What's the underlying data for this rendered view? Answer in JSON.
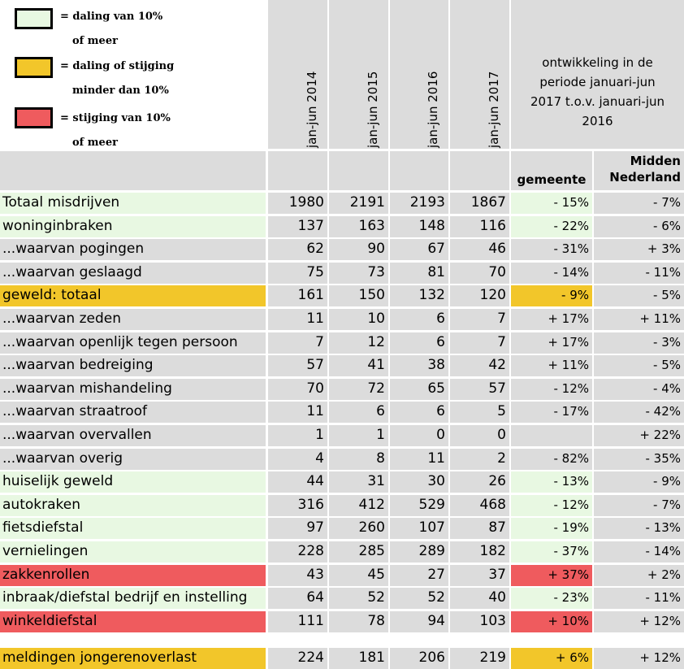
{
  "legend": [
    {
      "line1": "= daling van 10%",
      "line2": "of meer",
      "color": "#e8f8e2"
    },
    {
      "line1": "= daling of stijging",
      "line2": "minder dan 10%",
      "color": "#f2c62a"
    },
    {
      "line1": "= stijging van 10%",
      "line2": "of meer",
      "color": "#ef5b5e"
    }
  ],
  "headers": {
    "years": [
      "jan-jun 2014",
      "jan-jun 2015",
      "jan-jun 2016",
      "jan-jun 2017"
    ],
    "development": "ontwikkeling in de periode januari-jun 2017 t.o.v. januari-jun 2016",
    "gemeente": "gemeente",
    "midden": "Midden Nederland"
  },
  "rows": [
    {
      "label": "Totaal misdrijven",
      "color": "green",
      "values": [
        "1980",
        "2191",
        "2193",
        "1867"
      ],
      "gemeente": "- 15%",
      "gemeente_color": "green",
      "midden": "- 7%"
    },
    {
      "label": "woninginbraken",
      "color": "green",
      "values": [
        "137",
        "163",
        "148",
        "116"
      ],
      "gemeente": "- 22%",
      "gemeente_color": "green",
      "midden": "- 6%"
    },
    {
      "label": "...waarvan pogingen",
      "color": "gray",
      "values": [
        "62",
        "90",
        "67",
        "46"
      ],
      "gemeente": "- 31%",
      "gemeente_color": "gray",
      "midden": "+ 3%"
    },
    {
      "label": "...waarvan geslaagd",
      "color": "gray",
      "values": [
        "75",
        "73",
        "81",
        "70"
      ],
      "gemeente": "- 14%",
      "gemeente_color": "gray",
      "midden": "- 11%"
    },
    {
      "label": "geweld: totaal",
      "color": "yellow",
      "values": [
        "161",
        "150",
        "132",
        "120"
      ],
      "gemeente": "- 9%",
      "gemeente_color": "yellow",
      "midden": "- 5%"
    },
    {
      "label": "...waarvan zeden",
      "color": "gray",
      "values": [
        "11",
        "10",
        "6",
        "7"
      ],
      "gemeente": "+ 17%",
      "gemeente_color": "gray",
      "midden": "+ 11%"
    },
    {
      "label": "...waarvan openlijk tegen persoon",
      "color": "gray",
      "values": [
        "7",
        "12",
        "6",
        "7"
      ],
      "gemeente": "+ 17%",
      "gemeente_color": "gray",
      "midden": "- 3%"
    },
    {
      "label": "...waarvan bedreiging",
      "color": "gray",
      "values": [
        "57",
        "41",
        "38",
        "42"
      ],
      "gemeente": "+ 11%",
      "gemeente_color": "gray",
      "midden": "- 5%"
    },
    {
      "label": "...waarvan mishandeling",
      "color": "gray",
      "values": [
        "70",
        "72",
        "65",
        "57"
      ],
      "gemeente": "- 12%",
      "gemeente_color": "gray",
      "midden": "- 4%"
    },
    {
      "label": "...waarvan straatroof",
      "color": "gray",
      "values": [
        "11",
        "6",
        "6",
        "5"
      ],
      "gemeente": "- 17%",
      "gemeente_color": "gray",
      "midden": "- 42%"
    },
    {
      "label": "...waarvan overvallen",
      "color": "gray",
      "values": [
        "1",
        "1",
        "0",
        "0"
      ],
      "gemeente": "",
      "gemeente_color": "gray",
      "midden": "+ 22%"
    },
    {
      "label": "...waarvan overig",
      "color": "gray",
      "values": [
        "4",
        "8",
        "11",
        "2"
      ],
      "gemeente": "- 82%",
      "gemeente_color": "gray",
      "midden": "- 35%"
    },
    {
      "label": "huiselijk geweld",
      "color": "green",
      "values": [
        "44",
        "31",
        "30",
        "26"
      ],
      "gemeente": "- 13%",
      "gemeente_color": "green",
      "midden": "- 9%"
    },
    {
      "label": "autokraken",
      "color": "green",
      "values": [
        "316",
        "412",
        "529",
        "468"
      ],
      "gemeente": "- 12%",
      "gemeente_color": "green",
      "midden": "- 7%"
    },
    {
      "label": "fietsdiefstal",
      "color": "green",
      "values": [
        "97",
        "260",
        "107",
        "87"
      ],
      "gemeente": "- 19%",
      "gemeente_color": "green",
      "midden": "- 13%"
    },
    {
      "label": "vernielingen",
      "color": "green",
      "values": [
        "228",
        "285",
        "289",
        "182"
      ],
      "gemeente": "- 37%",
      "gemeente_color": "green",
      "midden": "- 14%"
    },
    {
      "label": "zakkenrollen",
      "color": "red",
      "values": [
        "43",
        "45",
        "27",
        "37"
      ],
      "gemeente": "+ 37%",
      "gemeente_color": "red",
      "midden": "+ 2%"
    },
    {
      "label": "inbraak/diefstal bedrijf en instelling",
      "color": "green",
      "values": [
        "64",
        "52",
        "52",
        "40"
      ],
      "gemeente": "- 23%",
      "gemeente_color": "green",
      "midden": "- 11%"
    },
    {
      "label": "winkeldiefstal",
      "color": "red",
      "values": [
        "111",
        "78",
        "94",
        "103"
      ],
      "gemeente": "+ 10%",
      "gemeente_color": "red",
      "midden": "+ 12%"
    }
  ],
  "footer_row": {
    "label": "meldingen jongerenoverlast",
    "color": "yellow",
    "values": [
      "224",
      "181",
      "206",
      "219"
    ],
    "gemeente": "+ 6%",
    "gemeente_color": "yellow",
    "midden": "+ 12%"
  }
}
